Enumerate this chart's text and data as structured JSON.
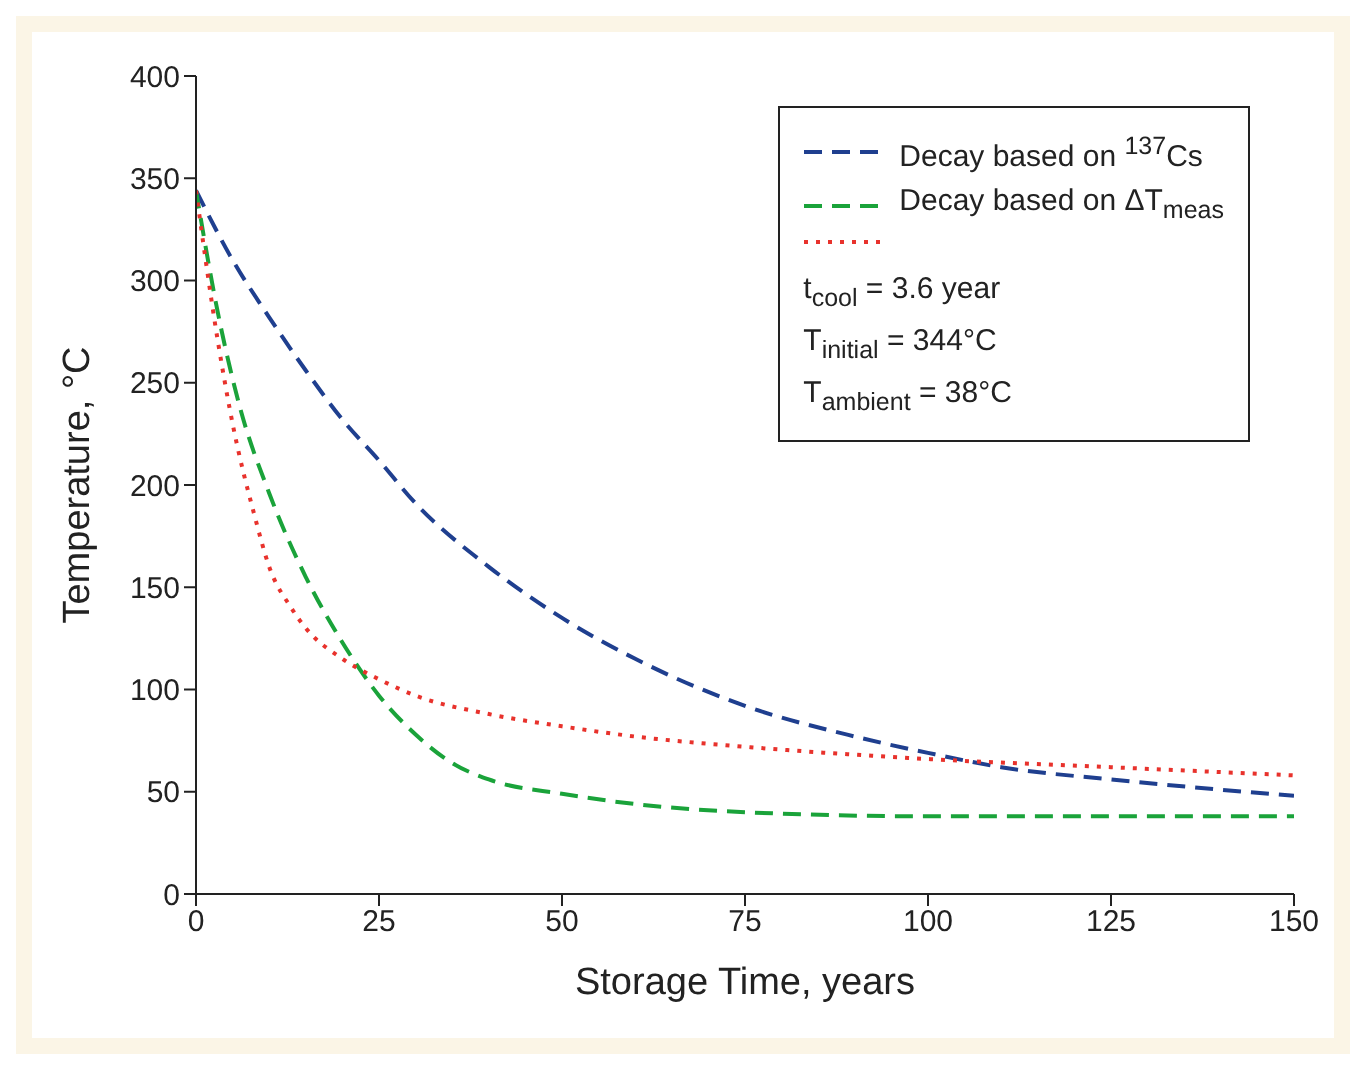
{
  "chart_data": {
    "type": "line",
    "xlabel": "Storage Time, years",
    "ylabel": "Temperature, °C",
    "xlim": [
      0,
      150
    ],
    "xticks": [
      0,
      25,
      50,
      75,
      100,
      125,
      150
    ],
    "ylim": [
      0,
      400
    ],
    "yticks": [
      0,
      50,
      100,
      150,
      200,
      250,
      300,
      350,
      400
    ],
    "legend": "top right",
    "marker": "none",
    "annotations": [
      "t$_{cool}$ = 3.6 year",
      "T$_{initial}$ = 344°C",
      "T$_{ambient}$ = 38°C"
    ],
    "series": [
      {
        "name": "Decay based on $^{137}$Cs",
        "color": "#1f3f8f",
        "line_style": "dashed",
        "x": [
          0,
          5,
          10,
          15,
          20,
          25,
          30,
          40,
          50,
          60,
          75,
          90,
          100,
          110,
          125,
          140,
          150
        ],
        "values": [
          344,
          310,
          282,
          256,
          232,
          212,
          191,
          160,
          135,
          115,
          92,
          77,
          69,
          62,
          56,
          51,
          48
        ]
      },
      {
        "name": "Decay based on ΔT$_{meas}$",
        "color": "#1aa33a",
        "line_style": "dashed",
        "x": [
          0,
          3,
          6,
          10,
          15,
          20,
          25,
          30,
          35,
          40,
          50,
          60,
          75,
          100,
          125,
          150
        ],
        "values": [
          344,
          284,
          238,
          196,
          155,
          123,
          97,
          78,
          64,
          56,
          49,
          44,
          40,
          38,
          38,
          38
        ]
      },
      {
        "color": "#e8322c",
        "line_style": "dotted",
        "x": [
          0,
          3,
          5,
          8,
          10,
          13,
          15,
          20,
          25,
          30,
          40,
          50,
          60,
          75,
          100,
          125,
          150
        ],
        "values": [
          344,
          270,
          230,
          185,
          160,
          140,
          130,
          115,
          105,
          97,
          88,
          82,
          77,
          72,
          66,
          62,
          58
        ]
      }
    ]
  }
}
